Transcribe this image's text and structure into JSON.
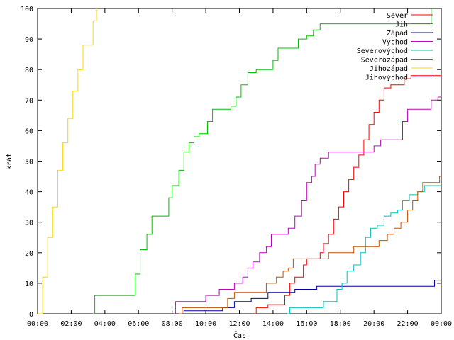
{
  "chart_data": {
    "type": "line",
    "xlabel": "Čas",
    "ylabel": "krát",
    "xlim": [
      0,
      24
    ],
    "ylim": [
      0,
      100
    ],
    "x_unit": "hours",
    "x_ticks": [
      "00:00",
      "02:00",
      "04:00",
      "06:00",
      "08:00",
      "10:00",
      "12:00",
      "14:00",
      "16:00",
      "18:00",
      "20:00",
      "22:00",
      "00:00"
    ],
    "y_ticks": [
      0,
      10,
      20,
      30,
      40,
      50,
      60,
      70,
      80,
      90,
      100
    ],
    "grid": false,
    "legend_position": "top-right",
    "series": [
      {
        "name": "Sever",
        "color": "#ff0000",
        "points": [
          [
            12.9,
            0
          ],
          [
            13.0,
            2
          ],
          [
            13.6,
            2
          ],
          [
            13.7,
            3
          ],
          [
            14.5,
            3
          ],
          [
            14.7,
            6
          ],
          [
            15.0,
            10
          ],
          [
            15.3,
            12
          ],
          [
            15.8,
            16
          ],
          [
            16.0,
            18
          ],
          [
            16.6,
            18
          ],
          [
            16.8,
            20
          ],
          [
            17.0,
            23
          ],
          [
            17.3,
            26
          ],
          [
            17.6,
            31
          ],
          [
            17.9,
            35
          ],
          [
            18.2,
            40
          ],
          [
            18.5,
            44
          ],
          [
            18.8,
            48
          ],
          [
            19.1,
            52
          ],
          [
            19.4,
            57
          ],
          [
            19.7,
            62
          ],
          [
            20.0,
            66
          ],
          [
            20.3,
            70
          ],
          [
            20.6,
            74
          ],
          [
            21.0,
            75
          ],
          [
            21.5,
            75
          ],
          [
            21.8,
            77
          ],
          [
            22.2,
            78
          ],
          [
            24,
            78
          ]
        ]
      },
      {
        "name": "Jih",
        "color": "#00c000",
        "points": [
          [
            3.3,
            0
          ],
          [
            3.4,
            6
          ],
          [
            5.6,
            6
          ],
          [
            5.8,
            13
          ],
          [
            6.1,
            21
          ],
          [
            6.5,
            26
          ],
          [
            6.8,
            32
          ],
          [
            7.5,
            32
          ],
          [
            7.8,
            38
          ],
          [
            8.0,
            42
          ],
          [
            8.4,
            47
          ],
          [
            8.7,
            53
          ],
          [
            9.0,
            56
          ],
          [
            9.3,
            58
          ],
          [
            9.6,
            59
          ],
          [
            10.1,
            63
          ],
          [
            10.4,
            67
          ],
          [
            11.0,
            67
          ],
          [
            11.3,
            67
          ],
          [
            11.5,
            68
          ],
          [
            11.8,
            71
          ],
          [
            12.1,
            75
          ],
          [
            12.5,
            79
          ],
          [
            13.0,
            80
          ],
          [
            13.5,
            80
          ],
          [
            14.0,
            83
          ],
          [
            14.3,
            87
          ],
          [
            15.0,
            87
          ],
          [
            15.5,
            90
          ],
          [
            16.0,
            91
          ],
          [
            16.4,
            93
          ],
          [
            16.8,
            95
          ],
          [
            20.0,
            95
          ],
          [
            23.3,
            95
          ],
          [
            23.4,
            100
          ]
        ]
      },
      {
        "name": "Západ",
        "color": "#0000a0",
        "points": [
          [
            8.6,
            0
          ],
          [
            8.7,
            1
          ],
          [
            10.8,
            1
          ],
          [
            11.0,
            2
          ],
          [
            11.5,
            2
          ],
          [
            11.7,
            4
          ],
          [
            12.5,
            4
          ],
          [
            12.7,
            5
          ],
          [
            13.5,
            5
          ],
          [
            13.7,
            7
          ],
          [
            15.0,
            7
          ],
          [
            15.3,
            8
          ],
          [
            16.4,
            8
          ],
          [
            16.6,
            9
          ],
          [
            23.5,
            9
          ],
          [
            23.6,
            11
          ],
          [
            24,
            11
          ]
        ]
      },
      {
        "name": "Východ",
        "color": "#c000c0",
        "points": [
          [
            8.1,
            0
          ],
          [
            8.2,
            4
          ],
          [
            9.8,
            4
          ],
          [
            10.0,
            6
          ],
          [
            10.6,
            6
          ],
          [
            10.8,
            8
          ],
          [
            11.5,
            8
          ],
          [
            11.7,
            10
          ],
          [
            12.2,
            12
          ],
          [
            12.5,
            15
          ],
          [
            12.8,
            17
          ],
          [
            13.2,
            20
          ],
          [
            13.6,
            22
          ],
          [
            13.9,
            26
          ],
          [
            14.7,
            26
          ],
          [
            14.9,
            28
          ],
          [
            15.3,
            32
          ],
          [
            15.7,
            37
          ],
          [
            16.0,
            43
          ],
          [
            16.3,
            45
          ],
          [
            16.5,
            49
          ],
          [
            16.8,
            51
          ],
          [
            17.3,
            53
          ],
          [
            19.7,
            53
          ],
          [
            20.0,
            55
          ],
          [
            20.4,
            57
          ],
          [
            21.4,
            57
          ],
          [
            21.7,
            63
          ],
          [
            22.0,
            67
          ],
          [
            23.2,
            67
          ],
          [
            23.4,
            70
          ],
          [
            23.8,
            71
          ],
          [
            24,
            71
          ]
        ]
      },
      {
        "name": "Severovýchod",
        "color": "#00c0c0",
        "points": [
          [
            14.8,
            0
          ],
          [
            15.0,
            2
          ],
          [
            16.8,
            2
          ],
          [
            17.0,
            4
          ],
          [
            17.5,
            4
          ],
          [
            17.8,
            8
          ],
          [
            18.1,
            10
          ],
          [
            18.4,
            14
          ],
          [
            18.8,
            16
          ],
          [
            19.2,
            20
          ],
          [
            19.5,
            25
          ],
          [
            19.8,
            28
          ],
          [
            20.2,
            29
          ],
          [
            20.6,
            32
          ],
          [
            21.0,
            33
          ],
          [
            21.4,
            34
          ],
          [
            21.7,
            37
          ],
          [
            22.1,
            39
          ],
          [
            22.6,
            40
          ],
          [
            23.0,
            42
          ],
          [
            24,
            42
          ]
        ]
      },
      {
        "name": "Severozápad",
        "color": "#c05000",
        "points": [
          [
            8.4,
            0
          ],
          [
            8.6,
            2
          ],
          [
            11.0,
            2
          ],
          [
            11.3,
            5
          ],
          [
            11.7,
            7
          ],
          [
            13.3,
            7
          ],
          [
            13.6,
            10
          ],
          [
            14.2,
            12
          ],
          [
            14.6,
            14
          ],
          [
            14.9,
            15
          ],
          [
            15.2,
            18
          ],
          [
            17.0,
            18
          ],
          [
            17.3,
            20
          ],
          [
            18.5,
            20
          ],
          [
            18.8,
            22
          ],
          [
            20.0,
            22
          ],
          [
            20.3,
            24
          ],
          [
            20.8,
            26
          ],
          [
            21.2,
            28
          ],
          [
            21.6,
            30
          ],
          [
            22.0,
            34
          ],
          [
            22.3,
            37
          ],
          [
            22.6,
            40
          ],
          [
            22.9,
            43
          ],
          [
            23.7,
            43
          ],
          [
            23.9,
            45
          ],
          [
            24,
            45
          ]
        ]
      },
      {
        "name": "Jihozápad",
        "color": "#ffd700",
        "points": [
          [
            0.0,
            0
          ],
          [
            0.3,
            12
          ],
          [
            0.6,
            25
          ],
          [
            0.9,
            35
          ],
          [
            1.2,
            47
          ],
          [
            1.5,
            56
          ],
          [
            1.8,
            64
          ],
          [
            2.1,
            73
          ],
          [
            2.4,
            80
          ],
          [
            2.7,
            88
          ],
          [
            3.0,
            88
          ],
          [
            3.3,
            96
          ],
          [
            3.5,
            100
          ]
        ]
      },
      {
        "name": "Jihovýchod",
        "color": "#000080",
        "points": []
      }
    ]
  }
}
